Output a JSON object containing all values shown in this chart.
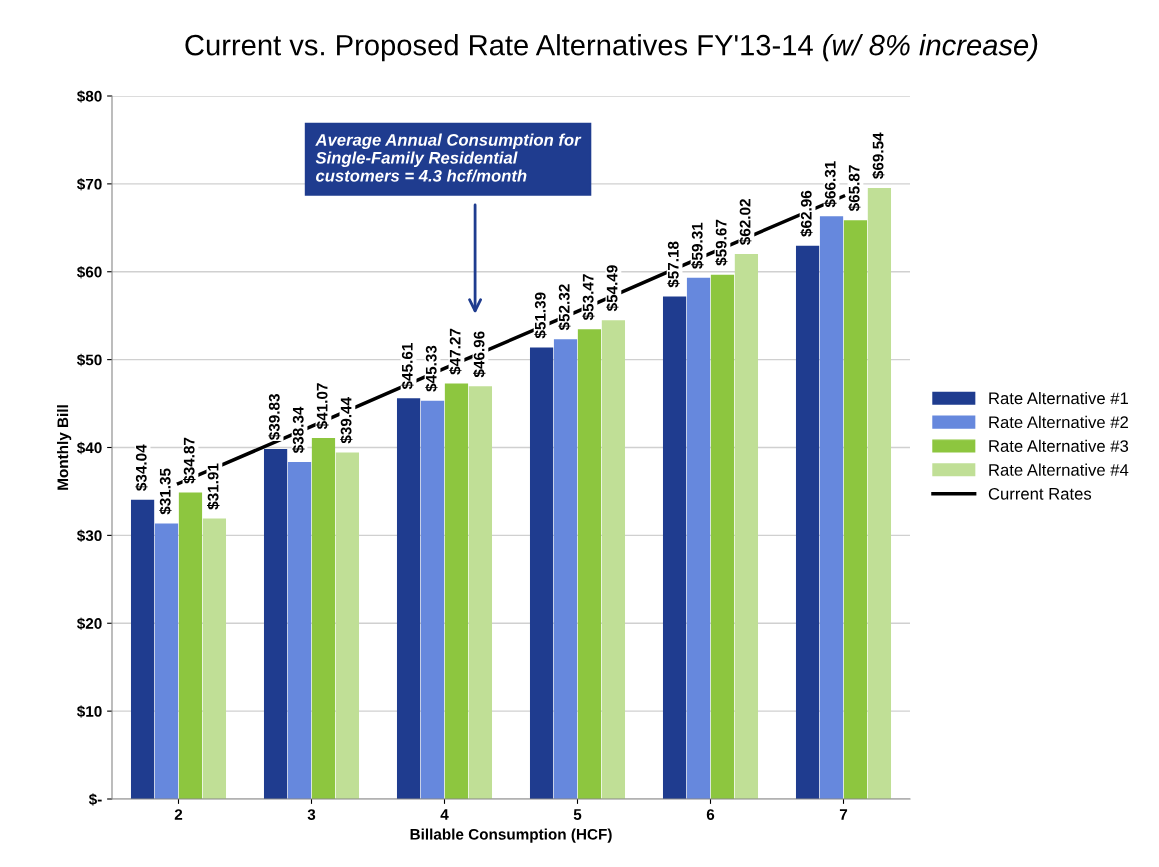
{
  "chart_data": {
    "type": "bar",
    "title": "Current vs. Proposed Rate Alternatives FY'13-14",
    "subtitle": "(w/ 8% increase)",
    "xlabel": "Billable Consumption (HCF)",
    "ylabel": "Monthly Bill",
    "categories": [
      "2",
      "3",
      "4",
      "5",
      "6",
      "7"
    ],
    "series": [
      {
        "name": "Rate Alternative #1",
        "color": "#1f3c8f",
        "values": [
          34.04,
          39.83,
          45.61,
          51.39,
          57.18,
          62.96
        ],
        "value_labels": [
          "$34.04",
          "$39.83",
          "$45.61",
          "$51.39",
          "$57.18",
          "$62.96"
        ]
      },
      {
        "name": "Rate Alternative #2",
        "color": "#6688dd",
        "values": [
          31.35,
          38.34,
          45.33,
          52.32,
          59.31,
          66.31
        ],
        "value_labels": [
          "$31.35",
          "$38.34",
          "$45.33",
          "$52.32",
          "$59.31",
          "$66.31"
        ]
      },
      {
        "name": "Rate Alternative #3",
        "color": "#8dc63f",
        "values": [
          34.87,
          41.07,
          47.27,
          53.47,
          59.67,
          65.87
        ],
        "value_labels": [
          "$34.87",
          "$41.07",
          "$47.27",
          "$53.47",
          "$59.67",
          "$65.87"
        ]
      },
      {
        "name": "Rate Alternative #4",
        "color": "#c0df96",
        "values": [
          31.91,
          39.44,
          46.96,
          54.49,
          62.02,
          69.54
        ],
        "value_labels": [
          "$31.91",
          "$39.44",
          "$46.96",
          "$54.49",
          "$62.02",
          "$69.54"
        ]
      },
      {
        "name": "Current Rates",
        "type": "line",
        "color": "#000000",
        "values": [
          35.9,
          42.4,
          49.0,
          55.5,
          62.1,
          68.6
        ]
      }
    ],
    "ylim": [
      0,
      80
    ],
    "yticks": [
      {
        "value": 0,
        "label": "$-"
      },
      {
        "value": 10,
        "label": "$10"
      },
      {
        "value": 20,
        "label": "$20"
      },
      {
        "value": 30,
        "label": "$30"
      },
      {
        "value": 40,
        "label": "$40"
      },
      {
        "value": 50,
        "label": "$50"
      },
      {
        "value": 60,
        "label": "$60"
      },
      {
        "value": 70,
        "label": "$70"
      },
      {
        "value": 80,
        "label": "$80"
      }
    ],
    "annotations": [
      "Average Annual Consumption for\nSingle-Family Residential\ncustomers = 4.3 hcf/month"
    ],
    "grid": "y",
    "legend": "right",
    "marker": "none",
    "line_style": "solid"
  }
}
